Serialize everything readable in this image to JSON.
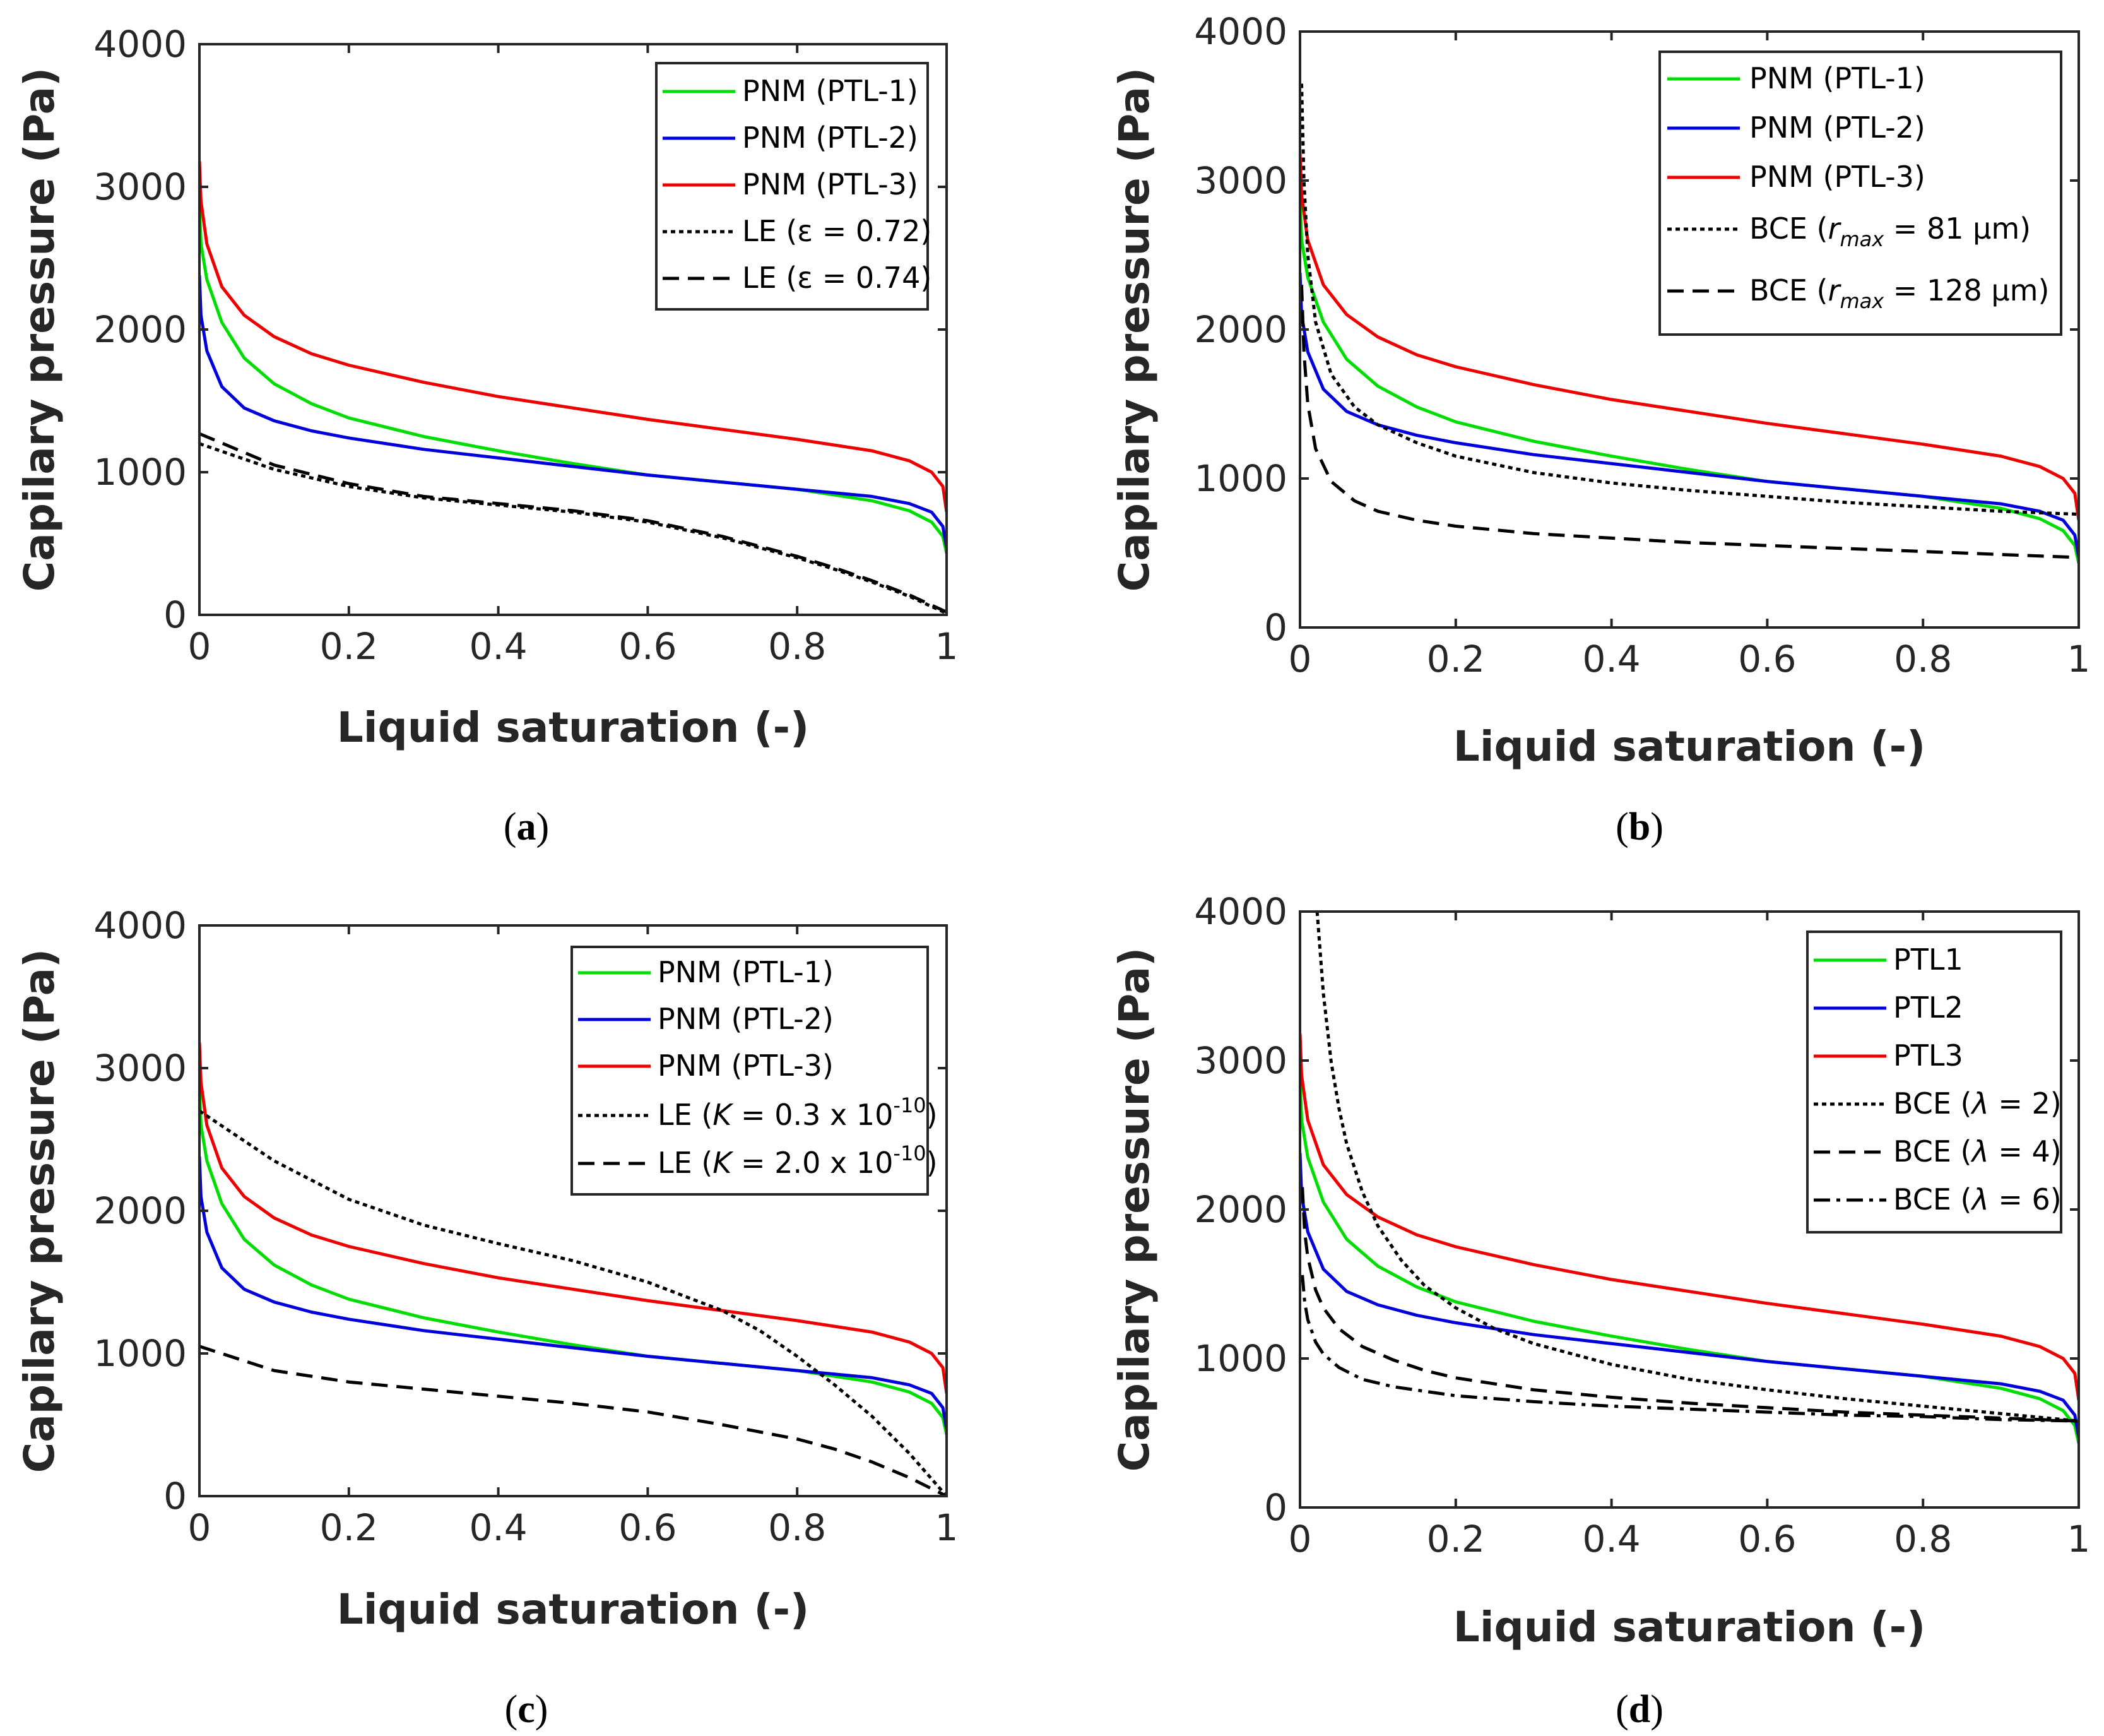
{
  "chart_data": [
    {
      "panel": "(a)",
      "caption_letter": "a",
      "type": "line",
      "xlabel": "Liquid saturation (-)",
      "ylabel": "Capilary pressure (Pa)",
      "xlim": [
        0,
        1
      ],
      "ylim": [
        0,
        4000
      ],
      "xticks": [
        "0",
        "0.2",
        "0.4",
        "0.6",
        "0.8",
        "1"
      ],
      "yticks": [
        "0",
        "1000",
        "2000",
        "3000",
        "4000"
      ],
      "legend_position": "top-right",
      "series": [
        {
          "label": "PNM (PTL-1)",
          "color": "#00dd00",
          "style": "solid",
          "x": [
            0,
            0.002,
            0.01,
            0.03,
            0.06,
            0.1,
            0.15,
            0.2,
            0.3,
            0.4,
            0.5,
            0.6,
            0.7,
            0.8,
            0.9,
            0.95,
            0.98,
            0.995,
            1
          ],
          "y": [
            2880,
            2600,
            2350,
            2050,
            1800,
            1620,
            1480,
            1380,
            1250,
            1150,
            1060,
            980,
            930,
            880,
            800,
            730,
            650,
            550,
            430
          ]
        },
        {
          "label": "PNM (PTL-2)",
          "color": "#0000dd",
          "style": "solid",
          "x": [
            0,
            0.002,
            0.01,
            0.03,
            0.06,
            0.1,
            0.15,
            0.2,
            0.3,
            0.4,
            0.5,
            0.6,
            0.7,
            0.8,
            0.9,
            0.95,
            0.98,
            0.995,
            1
          ],
          "y": [
            2380,
            2100,
            1850,
            1600,
            1450,
            1360,
            1290,
            1240,
            1160,
            1100,
            1040,
            980,
            930,
            880,
            830,
            780,
            720,
            620,
            470
          ]
        },
        {
          "label": "PNM (PTL-3)",
          "color": "#ee0000",
          "style": "solid",
          "x": [
            0,
            0.002,
            0.01,
            0.03,
            0.06,
            0.1,
            0.15,
            0.2,
            0.3,
            0.4,
            0.5,
            0.6,
            0.7,
            0.8,
            0.9,
            0.95,
            0.98,
            0.995,
            1
          ],
          "y": [
            3180,
            2900,
            2600,
            2300,
            2100,
            1950,
            1830,
            1750,
            1630,
            1530,
            1450,
            1370,
            1300,
            1230,
            1150,
            1080,
            1000,
            900,
            720
          ]
        },
        {
          "label": "LE (ε = 0.72)",
          "color": "#000000",
          "style": "dotted",
          "x": [
            0,
            0.1,
            0.2,
            0.3,
            0.4,
            0.5,
            0.6,
            0.7,
            0.8,
            0.85,
            0.9,
            0.95,
            1
          ],
          "y": [
            1200,
            1020,
            900,
            820,
            770,
            720,
            650,
            540,
            400,
            320,
            230,
            130,
            10
          ]
        },
        {
          "label": "LE (ε = 0.74)",
          "color": "#000000",
          "style": "dashed",
          "x": [
            0,
            0.1,
            0.2,
            0.3,
            0.4,
            0.5,
            0.6,
            0.7,
            0.8,
            0.85,
            0.9,
            0.95,
            1
          ],
          "y": [
            1270,
            1050,
            920,
            830,
            780,
            730,
            660,
            550,
            410,
            330,
            240,
            140,
            20
          ]
        }
      ]
    },
    {
      "panel": "(b)",
      "caption_letter": "b",
      "type": "line",
      "xlabel": "Liquid saturation (-)",
      "ylabel": "Capilary pressure (Pa)",
      "xlim": [
        0,
        1
      ],
      "ylim": [
        0,
        4000
      ],
      "xticks": [
        "0",
        "0.2",
        "0.4",
        "0.6",
        "0.8",
        "1"
      ],
      "yticks": [
        "0",
        "1000",
        "2000",
        "3000",
        "4000"
      ],
      "legend_position": "top-right",
      "series": [
        {
          "label": "PNM (PTL-1)",
          "color": "#00dd00",
          "style": "solid",
          "x": [
            0,
            0.002,
            0.01,
            0.03,
            0.06,
            0.1,
            0.15,
            0.2,
            0.3,
            0.4,
            0.5,
            0.6,
            0.7,
            0.8,
            0.9,
            0.95,
            0.98,
            0.995,
            1
          ],
          "y": [
            2880,
            2600,
            2350,
            2050,
            1800,
            1620,
            1480,
            1380,
            1250,
            1150,
            1060,
            980,
            930,
            880,
            800,
            730,
            650,
            550,
            430
          ]
        },
        {
          "label": "PNM (PTL-2)",
          "color": "#0000dd",
          "style": "solid",
          "x": [
            0,
            0.002,
            0.01,
            0.03,
            0.06,
            0.1,
            0.15,
            0.2,
            0.3,
            0.4,
            0.5,
            0.6,
            0.7,
            0.8,
            0.9,
            0.95,
            0.98,
            0.995,
            1
          ],
          "y": [
            2380,
            2100,
            1850,
            1600,
            1450,
            1360,
            1290,
            1240,
            1160,
            1100,
            1040,
            980,
            930,
            880,
            830,
            780,
            720,
            620,
            470
          ]
        },
        {
          "label": "PNM (PTL-3)",
          "color": "#ee0000",
          "style": "solid",
          "x": [
            0,
            0.002,
            0.01,
            0.03,
            0.06,
            0.1,
            0.15,
            0.2,
            0.3,
            0.4,
            0.5,
            0.6,
            0.7,
            0.8,
            0.9,
            0.95,
            0.98,
            0.995,
            1
          ],
          "y": [
            3180,
            2900,
            2600,
            2300,
            2100,
            1950,
            1830,
            1750,
            1630,
            1530,
            1450,
            1370,
            1300,
            1230,
            1150,
            1080,
            1000,
            900,
            720
          ]
        },
        {
          "label_prefix": "BCE (",
          "label_sub": "max",
          "label_suffix": " = 81 μm)",
          "color": "#000000",
          "style": "dotted",
          "x": [
            0.002,
            0.005,
            0.01,
            0.02,
            0.04,
            0.07,
            0.1,
            0.15,
            0.2,
            0.3,
            0.4,
            0.5,
            0.6,
            0.7,
            0.8,
            0.9,
            1
          ],
          "y": [
            3650,
            3000,
            2500,
            2050,
            1700,
            1480,
            1360,
            1240,
            1150,
            1040,
            970,
            920,
            880,
            840,
            810,
            780,
            760
          ]
        },
        {
          "label_prefix": "BCE (",
          "label_sub": "max",
          "label_suffix": " = 128 μm)",
          "color": "#000000",
          "style": "dashed",
          "x": [
            0.002,
            0.005,
            0.01,
            0.02,
            0.04,
            0.07,
            0.1,
            0.15,
            0.2,
            0.3,
            0.4,
            0.5,
            0.6,
            0.7,
            0.8,
            0.9,
            1
          ],
          "y": [
            2300,
            1850,
            1500,
            1200,
            980,
            850,
            780,
            720,
            680,
            630,
            600,
            570,
            550,
            530,
            510,
            490,
            470
          ]
        }
      ]
    },
    {
      "panel": "(c)",
      "caption_letter": "c",
      "type": "line",
      "xlabel": "Liquid saturation (-)",
      "ylabel": "Capilary pressure (Pa)",
      "xlim": [
        0,
        1
      ],
      "ylim": [
        0,
        4000
      ],
      "xticks": [
        "0",
        "0.2",
        "0.4",
        "0.6",
        "0.8",
        "1"
      ],
      "yticks": [
        "0",
        "1000",
        "2000",
        "3000",
        "4000"
      ],
      "legend_position": "top-right",
      "series": [
        {
          "label": "PNM (PTL-1)",
          "color": "#00dd00",
          "style": "solid",
          "x": [
            0,
            0.002,
            0.01,
            0.03,
            0.06,
            0.1,
            0.15,
            0.2,
            0.3,
            0.4,
            0.5,
            0.6,
            0.7,
            0.8,
            0.9,
            0.95,
            0.98,
            0.995,
            1
          ],
          "y": [
            2880,
            2600,
            2350,
            2050,
            1800,
            1620,
            1480,
            1380,
            1250,
            1150,
            1060,
            980,
            930,
            880,
            800,
            730,
            650,
            550,
            430
          ]
        },
        {
          "label": "PNM (PTL-2)",
          "color": "#0000dd",
          "style": "solid",
          "x": [
            0,
            0.002,
            0.01,
            0.03,
            0.06,
            0.1,
            0.15,
            0.2,
            0.3,
            0.4,
            0.5,
            0.6,
            0.7,
            0.8,
            0.9,
            0.95,
            0.98,
            0.995,
            1
          ],
          "y": [
            2380,
            2100,
            1850,
            1600,
            1450,
            1360,
            1290,
            1240,
            1160,
            1100,
            1040,
            980,
            930,
            880,
            830,
            780,
            720,
            620,
            470
          ]
        },
        {
          "label": "PNM (PTL-3)",
          "color": "#ee0000",
          "style": "solid",
          "x": [
            0,
            0.002,
            0.01,
            0.03,
            0.06,
            0.1,
            0.15,
            0.2,
            0.3,
            0.4,
            0.5,
            0.6,
            0.7,
            0.8,
            0.9,
            0.95,
            0.98,
            0.995,
            1
          ],
          "y": [
            3180,
            2900,
            2600,
            2300,
            2100,
            1950,
            1830,
            1750,
            1630,
            1530,
            1450,
            1370,
            1300,
            1230,
            1150,
            1080,
            1000,
            900,
            720
          ]
        },
        {
          "label_prefix": "LE (",
          "label_sup": "-10",
          "label_mid": " = 0.3 x 10",
          "label_suffix": ")",
          "color": "#000000",
          "style": "dotted",
          "x": [
            0,
            0.1,
            0.2,
            0.3,
            0.4,
            0.5,
            0.6,
            0.7,
            0.75,
            0.8,
            0.85,
            0.9,
            0.95,
            1
          ],
          "y": [
            2700,
            2350,
            2080,
            1900,
            1770,
            1650,
            1500,
            1300,
            1160,
            980,
            780,
            560,
            300,
            0
          ]
        },
        {
          "label_prefix": "LE (",
          "label_sup": "-10",
          "label_mid": " = 2.0 x 10",
          "label_suffix": ")",
          "color": "#000000",
          "style": "dashed",
          "x": [
            0,
            0.1,
            0.2,
            0.3,
            0.4,
            0.5,
            0.6,
            0.7,
            0.8,
            0.85,
            0.9,
            0.95,
            1
          ],
          "y": [
            1050,
            880,
            800,
            750,
            700,
            650,
            590,
            500,
            400,
            330,
            240,
            130,
            0
          ]
        }
      ]
    },
    {
      "panel": "(d)",
      "caption_letter": "d",
      "type": "line",
      "xlabel": "Liquid saturation (-)",
      "ylabel": "Capilary pressure (Pa)",
      "xlim": [
        0,
        1
      ],
      "ylim": [
        0,
        4000
      ],
      "xticks": [
        "0",
        "0.2",
        "0.4",
        "0.6",
        "0.8",
        "1"
      ],
      "yticks": [
        "0",
        "1000",
        "2000",
        "3000",
        "4000"
      ],
      "legend_position": "top-right",
      "series": [
        {
          "label": "PTL1",
          "color": "#00dd00",
          "style": "solid",
          "x": [
            0,
            0.002,
            0.01,
            0.03,
            0.06,
            0.1,
            0.15,
            0.2,
            0.3,
            0.4,
            0.5,
            0.6,
            0.7,
            0.8,
            0.9,
            0.95,
            0.98,
            0.995,
            1
          ],
          "y": [
            2880,
            2600,
            2350,
            2050,
            1800,
            1620,
            1480,
            1380,
            1250,
            1150,
            1060,
            980,
            930,
            880,
            800,
            730,
            650,
            550,
            430
          ]
        },
        {
          "label": "PTL2",
          "color": "#0000dd",
          "style": "solid",
          "x": [
            0,
            0.002,
            0.01,
            0.03,
            0.06,
            0.1,
            0.15,
            0.2,
            0.3,
            0.4,
            0.5,
            0.6,
            0.7,
            0.8,
            0.9,
            0.95,
            0.98,
            0.995,
            1
          ],
          "y": [
            2380,
            2100,
            1850,
            1600,
            1450,
            1360,
            1290,
            1240,
            1160,
            1100,
            1040,
            980,
            930,
            880,
            830,
            780,
            720,
            620,
            470
          ]
        },
        {
          "label": "PTL3",
          "color": "#ee0000",
          "style": "solid",
          "x": [
            0,
            0.002,
            0.01,
            0.03,
            0.06,
            0.1,
            0.15,
            0.2,
            0.3,
            0.4,
            0.5,
            0.6,
            0.7,
            0.8,
            0.9,
            0.95,
            0.98,
            0.995,
            1
          ],
          "y": [
            3180,
            2900,
            2600,
            2300,
            2100,
            1950,
            1830,
            1750,
            1630,
            1530,
            1450,
            1370,
            1300,
            1230,
            1150,
            1080,
            1000,
            900,
            720
          ]
        },
        {
          "label_prefix": "BCE (",
          "label_suffix": " = 2)",
          "color": "#000000",
          "style": "dotted",
          "x": [
            0.022,
            0.03,
            0.04,
            0.05,
            0.06,
            0.08,
            0.1,
            0.13,
            0.16,
            0.2,
            0.25,
            0.3,
            0.4,
            0.5,
            0.6,
            0.7,
            0.8,
            0.9,
            1
          ],
          "y": [
            4000,
            3450,
            2990,
            2680,
            2440,
            2120,
            1890,
            1660,
            1490,
            1340,
            1200,
            1100,
            960,
            860,
            790,
            730,
            680,
            630,
            580
          ]
        },
        {
          "label_prefix": "BCE (",
          "label_suffix": " = 4)",
          "color": "#000000",
          "style": "dashed",
          "x": [
            0.003,
            0.006,
            0.01,
            0.02,
            0.03,
            0.05,
            0.08,
            0.12,
            0.16,
            0.2,
            0.3,
            0.4,
            0.5,
            0.6,
            0.7,
            0.8,
            0.9,
            1
          ],
          "y": [
            2150,
            1850,
            1680,
            1460,
            1340,
            1200,
            1080,
            990,
            920,
            870,
            790,
            740,
            700,
            670,
            640,
            620,
            600,
            580
          ]
        },
        {
          "label_prefix": "BCE (",
          "label_suffix": " = 6)",
          "color": "#000000",
          "style": "dashdot",
          "x": [
            0.003,
            0.006,
            0.01,
            0.02,
            0.03,
            0.05,
            0.08,
            0.12,
            0.16,
            0.2,
            0.3,
            0.4,
            0.5,
            0.6,
            0.7,
            0.8,
            0.9,
            1
          ],
          "y": [
            1560,
            1380,
            1260,
            1110,
            1030,
            940,
            860,
            810,
            780,
            750,
            710,
            680,
            660,
            640,
            620,
            610,
            590,
            580
          ]
        }
      ]
    }
  ]
}
